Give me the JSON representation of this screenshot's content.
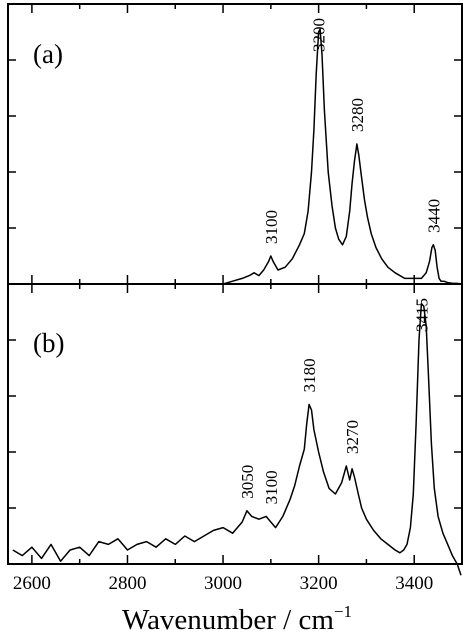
{
  "chart_data": [
    {
      "type": "line",
      "panel_label": "(a)",
      "xlim": [
        2550,
        3500
      ],
      "ylim": [
        0,
        1.0
      ],
      "yticks": "unlabeled",
      "color": "#000000",
      "peak_labels": [
        {
          "x": 3100,
          "text": "3100"
        },
        {
          "x": 3200,
          "text": "3200"
        },
        {
          "x": 3280,
          "text": "3280"
        },
        {
          "x": 3440,
          "text": "3440"
        }
      ],
      "series": [
        {
          "x": [
            3000,
            3020,
            3040,
            3055,
            3065,
            3075,
            3085,
            3095,
            3100,
            3105,
            3115,
            3130,
            3145,
            3160,
            3170,
            3178,
            3185,
            3190,
            3195,
            3200,
            3203,
            3207,
            3212,
            3220,
            3228,
            3235,
            3242,
            3250,
            3258,
            3265,
            3270,
            3275,
            3280,
            3284,
            3290,
            3296,
            3302,
            3310,
            3320,
            3332,
            3345,
            3360,
            3380,
            3400,
            3415,
            3425,
            3432,
            3437,
            3440,
            3444,
            3448,
            3452,
            3456,
            3462,
            3470,
            3480,
            3490,
            3500
          ],
          "y": [
            0.0,
            0.01,
            0.02,
            0.03,
            0.04,
            0.03,
            0.05,
            0.08,
            0.1,
            0.08,
            0.05,
            0.06,
            0.09,
            0.14,
            0.18,
            0.26,
            0.4,
            0.55,
            0.75,
            0.9,
            0.91,
            0.82,
            0.62,
            0.4,
            0.28,
            0.2,
            0.16,
            0.14,
            0.17,
            0.26,
            0.36,
            0.44,
            0.5,
            0.46,
            0.38,
            0.3,
            0.24,
            0.18,
            0.13,
            0.09,
            0.06,
            0.04,
            0.02,
            0.02,
            0.02,
            0.04,
            0.08,
            0.13,
            0.14,
            0.12,
            0.06,
            0.02,
            0.01,
            0.01,
            0.005,
            0.003,
            0.002,
            0.0
          ]
        }
      ]
    },
    {
      "type": "line",
      "panel_label": "(b)",
      "xlim": [
        2550,
        3500
      ],
      "ylim": [
        -0.05,
        0.95
      ],
      "yticks": "unlabeled",
      "color": "#000000",
      "xlabel": "Wavenumber / cm",
      "xlabel_sup": "−1",
      "xticks": [
        2600,
        2800,
        3000,
        3200,
        3400
      ],
      "xtick_labels": [
        "2600",
        "2800",
        "3000",
        "3200",
        "3400"
      ],
      "peak_labels": [
        {
          "x": 3050,
          "text": "3050"
        },
        {
          "x": 3100,
          "text": "3100"
        },
        {
          "x": 3180,
          "text": "3180"
        },
        {
          "x": 3270,
          "text": "3270"
        },
        {
          "x": 3415,
          "text": "3415"
        }
      ],
      "series": [
        {
          "x": [
            2560,
            2580,
            2600,
            2620,
            2640,
            2660,
            2680,
            2700,
            2720,
            2740,
            2760,
            2780,
            2800,
            2820,
            2840,
            2860,
            2880,
            2900,
            2920,
            2940,
            2960,
            2980,
            3000,
            3020,
            3040,
            3050,
            3060,
            3075,
            3090,
            3100,
            3110,
            3125,
            3140,
            3150,
            3160,
            3170,
            3175,
            3180,
            3185,
            3190,
            3200,
            3210,
            3222,
            3235,
            3248,
            3258,
            3265,
            3270,
            3275,
            3283,
            3290,
            3300,
            3315,
            3330,
            3345,
            3360,
            3370,
            3378,
            3385,
            3392,
            3398,
            3404,
            3410,
            3415,
            3420,
            3425,
            3430,
            3436,
            3442,
            3450,
            3460,
            3470,
            3480,
            3490,
            3498
          ],
          "y": [
            0.0,
            -0.02,
            0.01,
            -0.03,
            0.02,
            -0.04,
            0.0,
            0.01,
            -0.02,
            0.03,
            0.02,
            0.04,
            0.0,
            0.02,
            0.03,
            0.01,
            0.04,
            0.02,
            0.05,
            0.03,
            0.05,
            0.07,
            0.08,
            0.06,
            0.1,
            0.14,
            0.12,
            0.11,
            0.12,
            0.1,
            0.08,
            0.12,
            0.18,
            0.23,
            0.3,
            0.36,
            0.45,
            0.52,
            0.5,
            0.43,
            0.35,
            0.28,
            0.22,
            0.2,
            0.24,
            0.3,
            0.25,
            0.29,
            0.26,
            0.2,
            0.15,
            0.11,
            0.07,
            0.04,
            0.02,
            0.0,
            -0.01,
            0.0,
            0.02,
            0.08,
            0.2,
            0.45,
            0.75,
            0.88,
            0.87,
            0.8,
            0.62,
            0.38,
            0.22,
            0.12,
            0.06,
            0.02,
            -0.02,
            -0.05,
            -0.09
          ]
        }
      ]
    }
  ]
}
